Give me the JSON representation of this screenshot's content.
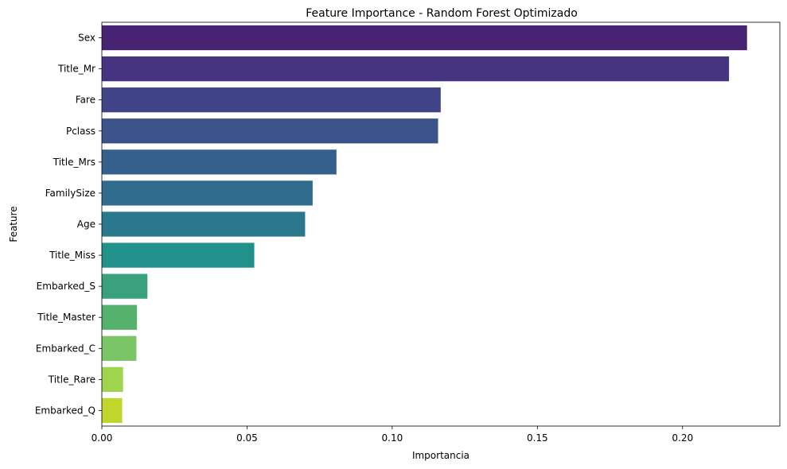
{
  "chart_data": {
    "type": "bar",
    "orientation": "horizontal",
    "title": "Feature Importance - Random Forest Optimizado",
    "xlabel": "Importancia",
    "ylabel": "Feature",
    "xlim": [
      0,
      0.2335
    ],
    "xticks": [
      0.0,
      0.05,
      0.1,
      0.15,
      0.2
    ],
    "xtick_labels": [
      "0.00",
      "0.05",
      "0.10",
      "0.15",
      "0.20"
    ],
    "grid": false,
    "categories": [
      "Sex",
      "Title_Mr",
      "Fare",
      "Pclass",
      "Title_Mrs",
      "FamilySize",
      "Age",
      "Title_Miss",
      "Embarked_S",
      "Title_Master",
      "Embarked_C",
      "Title_Rare",
      "Embarked_Q"
    ],
    "values": [
      0.2222,
      0.216,
      0.1167,
      0.1158,
      0.0808,
      0.0726,
      0.07,
      0.0525,
      0.0157,
      0.0121,
      0.0119,
      0.0073,
      0.007
    ],
    "colors": [
      "#482374",
      "#463480",
      "#414487",
      "#3b528b",
      "#35608d",
      "#2f6c8e",
      "#2a788e",
      "#21918c",
      "#3aa17e",
      "#55b26c",
      "#7ac565",
      "#9fd44e",
      "#c0d62c"
    ]
  }
}
